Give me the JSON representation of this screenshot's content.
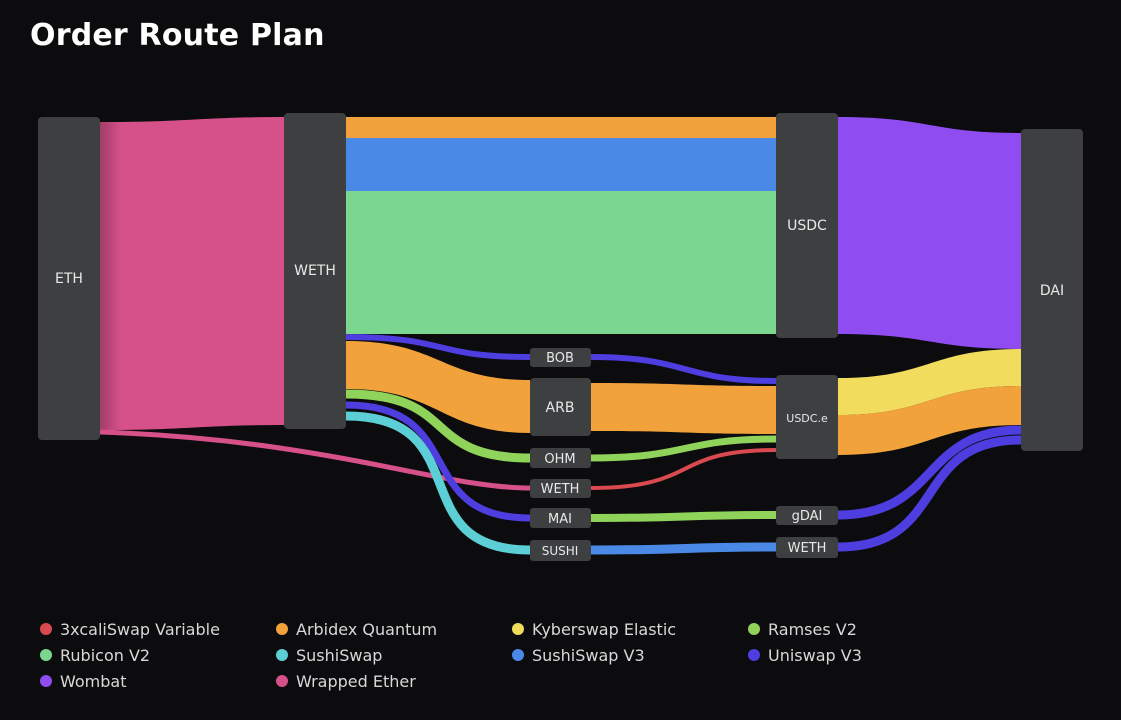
{
  "header": {
    "title": "Order Route Plan"
  },
  "nodes": {
    "eth": "ETH",
    "weth": "WETH",
    "usdc": "USDC",
    "dai": "DAI",
    "bob": "BOB",
    "arb": "ARB",
    "ohm": "OHM",
    "weth_mid": "WETH",
    "mai": "MAI",
    "sushi": "SUSHI",
    "usdce": "USDC.e",
    "gdai": "gDAI",
    "weth_right": "WETH"
  },
  "legend": [
    {
      "label": "3xcaliSwap Variable",
      "color": "#d84a4f"
    },
    {
      "label": "Arbidex Quantum",
      "color": "#f2a23b"
    },
    {
      "label": "Kyberswap Elastic",
      "color": "#f2dc5d"
    },
    {
      "label": "Ramses V2",
      "color": "#8fd35a"
    },
    {
      "label": "Rubicon V2",
      "color": "#7bd68f"
    },
    {
      "label": "SushiSwap",
      "color": "#5ccfd6"
    },
    {
      "label": "SushiSwap V3",
      "color": "#4a8ae6"
    },
    {
      "label": "Uniswap V3",
      "color": "#4e3ee0"
    },
    {
      "label": "Wombat",
      "color": "#8f4cf0"
    },
    {
      "label": "Wrapped Ether",
      "color": "#d6508a"
    }
  ],
  "colors": {
    "background": "#0c0c0e",
    "node": "#3d3f41"
  }
}
